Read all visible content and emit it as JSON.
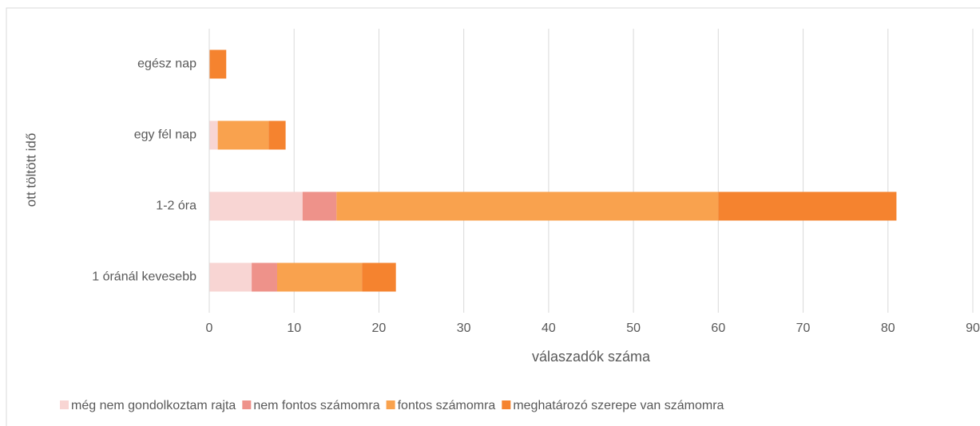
{
  "chart_data": {
    "type": "stacked_barh",
    "y_axis_label": "ott töltött idő",
    "x_axis_label": "válaszadók száma",
    "categories": [
      "1 óránál kevesebb",
      "1-2 óra",
      "egy fél nap",
      "egész nap"
    ],
    "series": [
      {
        "name": "még nem gondolkoztam rajta",
        "color": "#f8d5d3",
        "values": [
          5,
          11,
          1,
          0
        ]
      },
      {
        "name": "nem fontos számomra",
        "color": "#ee928a",
        "values": [
          3,
          4,
          0,
          0
        ]
      },
      {
        "name": "fontos számomra",
        "color": "#f9a24e",
        "values": [
          10,
          45,
          6,
          0
        ]
      },
      {
        "name": "meghatározó szerepe van számomra",
        "color": "#f5832f",
        "values": [
          4,
          21,
          2,
          2
        ]
      }
    ],
    "xlim": [
      0,
      90
    ],
    "xticks": [
      0,
      10,
      20,
      30,
      40,
      50,
      60,
      70,
      80,
      90
    ],
    "grid": true,
    "legend": "bottom"
  }
}
